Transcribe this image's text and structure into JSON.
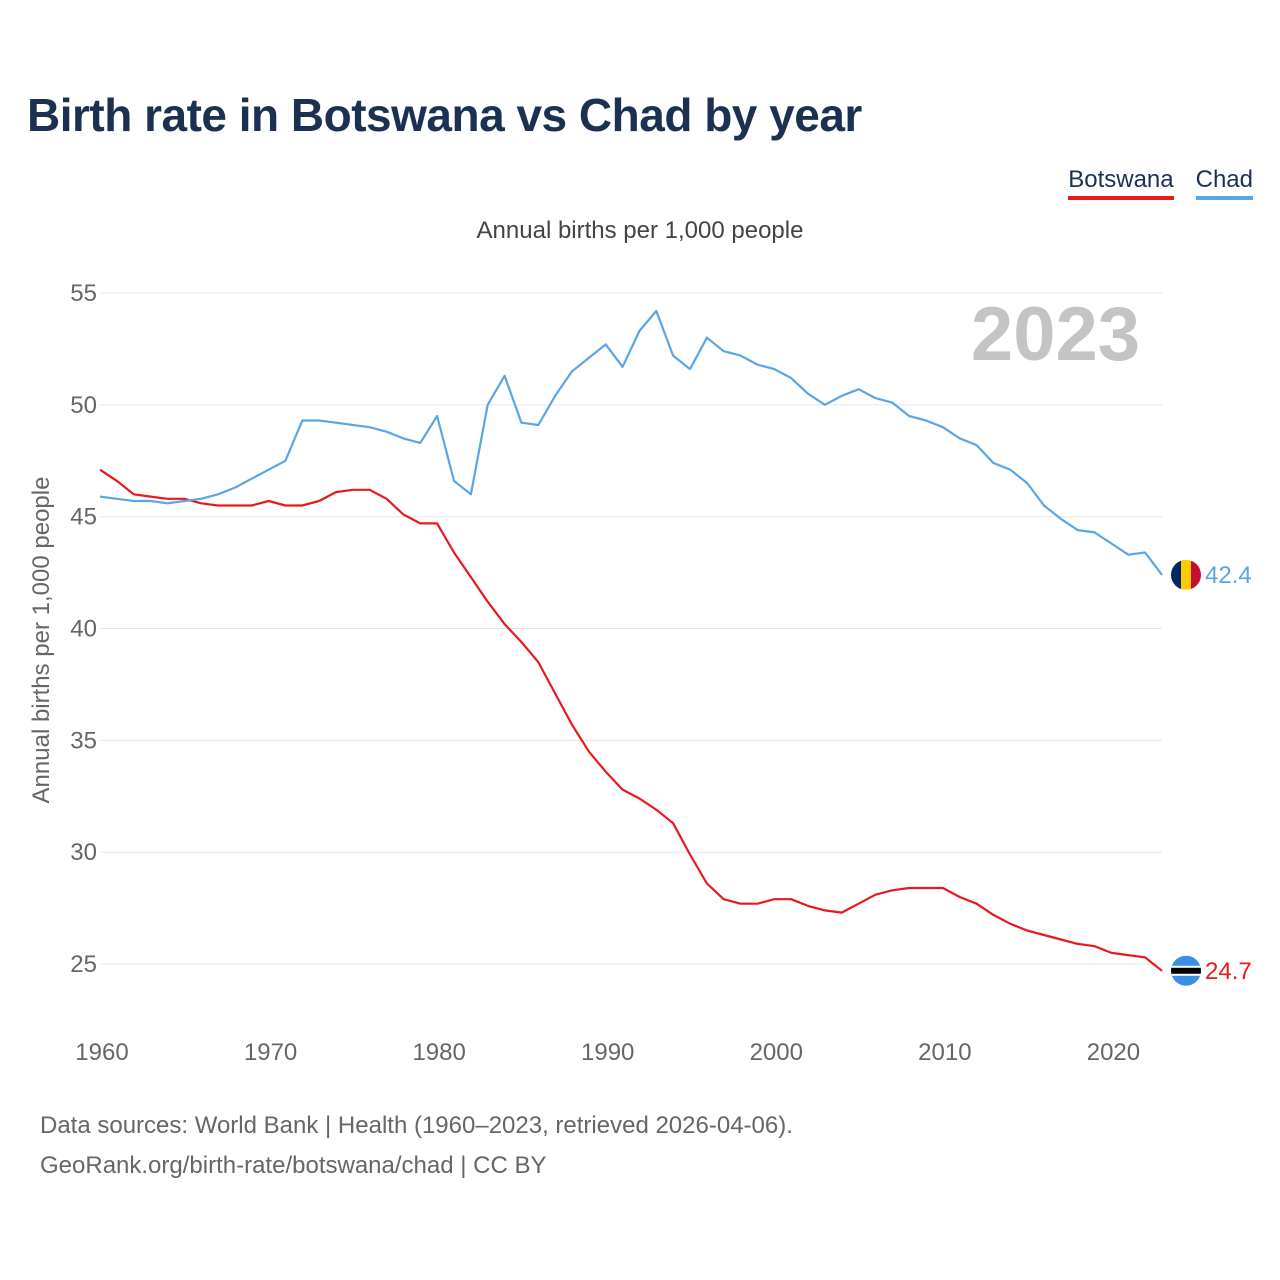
{
  "chart_data": {
    "type": "line",
    "title": "Birth rate in Botswana vs Chad by year",
    "subtitle": "Annual births per 1,000 people",
    "ylabel": "Annual births per 1,000 people",
    "xlabel": "",
    "year_label": "2023",
    "xlim": [
      1960,
      2023
    ],
    "ylim": [
      22.5,
      55
    ],
    "y_ticks": [
      25,
      30,
      35,
      40,
      45,
      50,
      55
    ],
    "x_ticks": [
      1960,
      1970,
      1980,
      1990,
      2000,
      2010,
      2020
    ],
    "legend_position": "top-right",
    "x": [
      1960,
      1961,
      1962,
      1963,
      1964,
      1965,
      1966,
      1967,
      1968,
      1969,
      1970,
      1971,
      1972,
      1973,
      1974,
      1975,
      1976,
      1977,
      1978,
      1979,
      1980,
      1981,
      1982,
      1983,
      1984,
      1985,
      1986,
      1987,
      1988,
      1989,
      1990,
      1991,
      1992,
      1993,
      1994,
      1995,
      1996,
      1997,
      1998,
      1999,
      2000,
      2001,
      2002,
      2003,
      2004,
      2005,
      2006,
      2007,
      2008,
      2009,
      2010,
      2011,
      2012,
      2013,
      2014,
      2015,
      2016,
      2017,
      2018,
      2019,
      2020,
      2021,
      2022,
      2023
    ],
    "series": [
      {
        "name": "Botswana",
        "color": "#e8191c",
        "end_label": "24.7",
        "values": [
          47.1,
          46.6,
          46.0,
          45.9,
          45.8,
          45.8,
          45.6,
          45.5,
          45.5,
          45.5,
          45.7,
          45.5,
          45.5,
          45.7,
          46.1,
          46.2,
          46.2,
          45.8,
          45.1,
          44.7,
          44.7,
          43.4,
          42.3,
          41.2,
          40.2,
          39.4,
          38.5,
          37.1,
          35.7,
          34.5,
          33.6,
          32.8,
          32.4,
          31.9,
          31.3,
          29.9,
          28.6,
          27.9,
          27.7,
          27.7,
          27.9,
          27.9,
          27.6,
          27.4,
          27.3,
          27.7,
          28.1,
          28.3,
          28.4,
          28.4,
          28.4,
          28.0,
          27.7,
          27.2,
          26.8,
          26.5,
          26.3,
          26.1,
          25.9,
          25.8,
          25.5,
          25.4,
          25.3,
          24.7
        ]
      },
      {
        "name": "Chad",
        "color": "#5aa5e6",
        "end_label": "42.4",
        "values": [
          45.9,
          45.8,
          45.7,
          45.7,
          45.6,
          45.7,
          45.8,
          46.0,
          46.3,
          46.7,
          47.1,
          47.5,
          49.3,
          49.3,
          49.2,
          49.1,
          49.0,
          48.8,
          48.5,
          48.3,
          49.5,
          46.6,
          46.0,
          50.0,
          51.3,
          49.2,
          49.1,
          50.4,
          51.5,
          52.1,
          52.7,
          51.7,
          53.3,
          54.2,
          52.2,
          51.6,
          53.0,
          52.4,
          52.2,
          51.8,
          51.6,
          51.2,
          50.5,
          50.0,
          50.4,
          50.7,
          50.3,
          50.1,
          49.5,
          49.3,
          49.0,
          48.5,
          48.2,
          47.4,
          47.1,
          46.5,
          45.5,
          44.9,
          44.4,
          44.3,
          43.8,
          43.3,
          43.4,
          42.4
        ]
      }
    ],
    "sources": [
      "Data sources: World Bank | Health (1960–2023, retrieved 2026-04-06).",
      "GeoRank.org/birth-rate/botswana/chad | CC BY"
    ]
  }
}
